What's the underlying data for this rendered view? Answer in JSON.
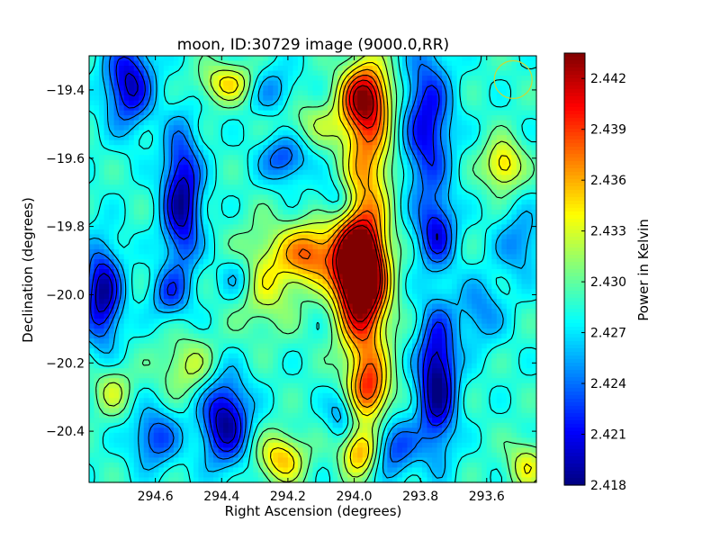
{
  "chart_data": {
    "type": "heatmap",
    "title": "moon, ID:30729 image (9000.0,RR)",
    "xlabel": "Right Ascension (degrees)",
    "ylabel": "Declination (degrees)",
    "colorbar_label": "Power in Kelvin",
    "xlim": [
      294.8,
      293.45
    ],
    "ylim": [
      -20.55,
      -19.3
    ],
    "x_ticks": [
      294.6,
      294.4,
      294.2,
      294.0,
      293.8,
      293.6
    ],
    "x_tick_labels": [
      "294.6",
      "294.4",
      "294.2",
      "294.0",
      "293.8",
      "293.6"
    ],
    "y_ticks": [
      -19.4,
      -19.6,
      -19.8,
      -20.0,
      -20.2,
      -20.4
    ],
    "y_tick_labels": [
      "−19.4",
      "−19.6",
      "−19.8",
      "−20.0",
      "−20.2",
      "−20.4"
    ],
    "colorbar_range": [
      2.418,
      2.4435
    ],
    "colorbar_ticks": [
      2.418,
      2.421,
      2.424,
      2.427,
      2.43,
      2.433,
      2.436,
      2.439,
      2.442
    ],
    "colorbar_tick_labels": [
      "2.418",
      "2.421",
      "2.424",
      "2.427",
      "2.430",
      "2.433",
      "2.436",
      "2.439",
      "2.442"
    ],
    "colormap": "jet",
    "contour_color": "#000000",
    "beam_marker": {
      "ra": 293.52,
      "dec": -19.37,
      "color": "#c8d838"
    },
    "peak": {
      "ra": 293.99,
      "dec": -19.92,
      "value": 2.442
    },
    "features": [
      {
        "ra": 293.99,
        "dec": -19.92,
        "sdx": 0.05,
        "sdy": 0.09,
        "value": 0.0175
      },
      {
        "ra": 293.97,
        "dec": -20.02,
        "sdx": 0.05,
        "sdy": 0.18,
        "value": 0.01
      },
      {
        "ra": 293.96,
        "dec": -19.55,
        "sdx": 0.05,
        "sdy": 0.16,
        "value": 0.008
      },
      {
        "ra": 293.97,
        "dec": -19.42,
        "sdx": 0.05,
        "sdy": 0.06,
        "value": 0.01
      },
      {
        "ra": 293.95,
        "dec": -20.28,
        "sdx": 0.04,
        "sdy": 0.06,
        "value": 0.008
      },
      {
        "ra": 294.13,
        "dec": -19.88,
        "sdx": 0.06,
        "sdy": 0.06,
        "value": 0.009
      },
      {
        "ra": 294.27,
        "dec": -19.95,
        "sdx": 0.07,
        "sdy": 0.1,
        "value": 0.005
      },
      {
        "ra": 293.55,
        "dec": -19.62,
        "sdx": 0.04,
        "sdy": 0.05,
        "value": 0.007
      },
      {
        "ra": 293.98,
        "dec": -20.46,
        "sdx": 0.04,
        "sdy": 0.05,
        "value": 0.008
      },
      {
        "ra": 294.22,
        "dec": -20.48,
        "sdx": 0.05,
        "sdy": 0.05,
        "value": 0.007
      },
      {
        "ra": 294.38,
        "dec": -19.38,
        "sdx": 0.06,
        "sdy": 0.04,
        "value": 0.006
      },
      {
        "ra": 294.5,
        "dec": -20.21,
        "sdx": 0.06,
        "sdy": 0.06,
        "value": 0.004
      },
      {
        "ra": 294.12,
        "dec": -19.5,
        "sdx": 0.08,
        "sdy": 0.05,
        "value": 0.003
      },
      {
        "ra": 293.48,
        "dec": -20.5,
        "sdx": 0.04,
        "sdy": 0.05,
        "value": 0.005
      },
      {
        "ra": 294.73,
        "dec": -20.28,
        "sdx": 0.04,
        "sdy": 0.05,
        "value": 0.004
      },
      {
        "ra": 294.68,
        "dec": -19.38,
        "sdx": 0.05,
        "sdy": 0.09,
        "value": -0.009
      },
      {
        "ra": 294.52,
        "dec": -19.72,
        "sdx": 0.04,
        "sdy": 0.14,
        "value": -0.01
      },
      {
        "ra": 293.75,
        "dec": -20.25,
        "sdx": 0.04,
        "sdy": 0.14,
        "value": -0.011
      },
      {
        "ra": 293.78,
        "dec": -19.5,
        "sdx": 0.05,
        "sdy": 0.16,
        "value": -0.008
      },
      {
        "ra": 293.75,
        "dec": -19.82,
        "sdx": 0.04,
        "sdy": 0.07,
        "value": -0.007
      },
      {
        "ra": 294.76,
        "dec": -20.0,
        "sdx": 0.04,
        "sdy": 0.1,
        "value": -0.01
      },
      {
        "ra": 294.39,
        "dec": -20.37,
        "sdx": 0.05,
        "sdy": 0.09,
        "value": -0.01
      },
      {
        "ra": 294.04,
        "dec": -20.35,
        "sdx": 0.03,
        "sdy": 0.05,
        "value": -0.004
      },
      {
        "ra": 294.21,
        "dec": -19.6,
        "sdx": 0.05,
        "sdy": 0.05,
        "value": -0.006
      },
      {
        "ra": 294.6,
        "dec": -20.42,
        "sdx": 0.05,
        "sdy": 0.06,
        "value": -0.006
      },
      {
        "ra": 294.56,
        "dec": -20.0,
        "sdx": 0.04,
        "sdy": 0.05,
        "value": -0.005
      },
      {
        "ra": 293.62,
        "dec": -20.05,
        "sdx": 0.05,
        "sdy": 0.07,
        "value": -0.004
      },
      {
        "ra": 294.35,
        "dec": -19.95,
        "sdx": 0.04,
        "sdy": 0.05,
        "value": -0.004
      },
      {
        "ra": 293.88,
        "dec": -20.45,
        "sdx": 0.05,
        "sdy": 0.06,
        "value": -0.006
      },
      {
        "ra": 294.05,
        "dec": -19.72,
        "sdx": 0.04,
        "sdy": 0.04,
        "value": -0.003
      },
      {
        "ra": 293.5,
        "dec": -19.85,
        "sdx": 0.05,
        "sdy": 0.07,
        "value": -0.004
      },
      {
        "ra": 294.25,
        "dec": -19.4,
        "sdx": 0.05,
        "sdy": 0.05,
        "value": -0.004
      }
    ]
  }
}
